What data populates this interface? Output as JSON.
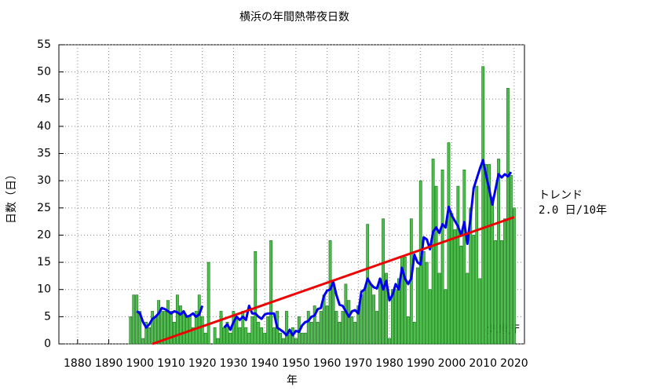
{
  "chart_data": {
    "type": "bar",
    "title": "横浜の年間熱帯夜日数",
    "x_label": "年",
    "y_label": "日数（日）",
    "annotations": [
      "トレンド",
      "2.0 日/10年",
      "気象庁"
    ],
    "xlim": [
      1874,
      2023.3
    ],
    "ylim": [
      0,
      55
    ],
    "xticks": [
      1880,
      1890,
      1900,
      1910,
      1920,
      1930,
      1940,
      1950,
      1960,
      1970,
      1980,
      1990,
      2000,
      2010,
      2020
    ],
    "yticks": [
      0,
      5,
      10,
      15,
      20,
      25,
      30,
      35,
      40,
      45,
      50,
      55
    ],
    "grid": true,
    "series": [
      {
        "type": "bar",
        "color": "#4cbf4c",
        "x": [
          1897,
          1898,
          1899,
          1900,
          1901,
          1902,
          1903,
          1904,
          1905,
          1906,
          1907,
          1908,
          1909,
          1910,
          1911,
          1912,
          1913,
          1914,
          1915,
          1916,
          1917,
          1918,
          1919,
          1920,
          1921,
          1922,
          1923,
          1924,
          1925,
          1926,
          1927,
          1928,
          1929,
          1930,
          1931,
          1932,
          1933,
          1934,
          1935,
          1936,
          1937,
          1938,
          1939,
          1940,
          1941,
          1942,
          1943,
          1944,
          1945,
          1946,
          1947,
          1948,
          1949,
          1950,
          1951,
          1952,
          1953,
          1954,
          1955,
          1956,
          1957,
          1958,
          1959,
          1960,
          1961,
          1962,
          1963,
          1964,
          1965,
          1966,
          1967,
          1968,
          1969,
          1970,
          1971,
          1972,
          1973,
          1974,
          1975,
          1976,
          1977,
          1978,
          1979,
          1980,
          1981,
          1982,
          1983,
          1984,
          1985,
          1986,
          1987,
          1988,
          1989,
          1990,
          1991,
          1992,
          1993,
          1994,
          1995,
          1996,
          1997,
          1998,
          1999,
          2000,
          2001,
          2002,
          2003,
          2004,
          2005,
          2006,
          2007,
          2008,
          2009,
          2010,
          2011,
          2012,
          2013,
          2014,
          2015,
          2016,
          2017,
          2018,
          2019,
          2020
        ],
        "values": [
          5,
          9,
          9,
          6,
          1,
          4,
          3,
          6,
          5,
          8,
          6,
          6,
          8,
          6,
          4,
          9,
          7,
          6,
          5,
          5,
          3,
          6,
          9,
          5,
          2,
          15,
          0,
          3,
          1,
          6,
          3,
          4,
          2,
          6,
          5,
          3,
          6,
          3,
          2,
          5,
          17,
          4,
          3,
          2,
          5,
          19,
          3,
          6,
          2,
          1,
          6,
          2,
          3,
          1,
          5,
          2,
          2,
          6,
          4,
          7,
          4,
          6,
          9,
          7,
          19,
          11,
          6,
          4,
          6,
          11,
          8,
          5,
          4,
          7,
          9,
          10,
          22,
          11,
          9,
          6,
          12,
          23,
          13,
          1,
          10,
          10,
          12,
          16,
          16,
          5,
          23,
          4,
          14,
          30,
          17,
          15,
          10,
          34,
          29,
          13,
          32,
          10,
          37,
          24,
          21,
          29,
          18,
          32,
          13,
          25,
          20,
          29,
          12,
          51,
          33,
          33,
          27,
          19,
          34,
          19,
          23,
          47,
          31,
          25
        ]
      },
      {
        "type": "line",
        "color": "#0000ee",
        "x": [
          1899,
          1900,
          1901,
          1902,
          1903,
          1904,
          1905,
          1906,
          1907,
          1908,
          1909,
          1910,
          1911,
          1912,
          1913,
          1914,
          1915,
          1916,
          1917,
          1918,
          1919,
          1920,
          1921,
          1922,
          1923,
          1924,
          1925,
          1926,
          1927,
          1928,
          1929,
          1930,
          1931,
          1932,
          1933,
          1934,
          1935,
          1936,
          1937,
          1938,
          1939,
          1940,
          1941,
          1942,
          1943,
          1944,
          1945,
          1946,
          1947,
          1948,
          1949,
          1950,
          1951,
          1952,
          1953,
          1954,
          1955,
          1956,
          1957,
          1958,
          1959,
          1960,
          1961,
          1962,
          1963,
          1964,
          1965,
          1966,
          1967,
          1968,
          1969,
          1970,
          1971,
          1972,
          1973,
          1974,
          1975,
          1976,
          1977,
          1978,
          1979,
          1980,
          1981,
          1982,
          1983,
          1984,
          1985,
          1986,
          1987,
          1988,
          1989,
          1990,
          1991,
          1992,
          1993,
          1994,
          1995,
          1996,
          1997,
          1998,
          1999,
          2000,
          2001,
          2002,
          2003,
          2004,
          2005,
          2006,
          2007,
          2008,
          2009,
          2010,
          2011,
          2012,
          2013,
          2014,
          2015,
          2016,
          2017,
          2018,
          2019
        ],
        "values": [
          6,
          5.6,
          4,
          3,
          3.6,
          4.6,
          5,
          5.6,
          6.6,
          6.4,
          6,
          5.6,
          6,
          5.8,
          5.4,
          6,
          5,
          5.2,
          5.6,
          5,
          5.4,
          7,
          null,
          null,
          null,
          null,
          null,
          null,
          3,
          3.6,
          2.6,
          4,
          5,
          4.4,
          5,
          4.4,
          7,
          5.6,
          5.6,
          5,
          4.6,
          5.4,
          5.6,
          5.6,
          5.6,
          3,
          2.6,
          2.2,
          1.6,
          2.6,
          1.6,
          2.4,
          2.2,
          3.4,
          4,
          4.2,
          5,
          5.2,
          6.4,
          6.6,
          8.8,
          9.8,
          10,
          11.4,
          9,
          7.2,
          7,
          6,
          5,
          6,
          6.2,
          5.6,
          9.6,
          10,
          12,
          11,
          10.4,
          10.2,
          12,
          10,
          11.6,
          8,
          9,
          11,
          10,
          14,
          12,
          11,
          12,
          16.4,
          15,
          14.6,
          19.6,
          19.2,
          17.4,
          20.6,
          21.4,
          20.4,
          22,
          21.4,
          25.2,
          23.6,
          22.6,
          21.6,
          20,
          22.4,
          18.4,
          23.2,
          28.6,
          30.4,
          32.2,
          33.8,
          31,
          28.4,
          25.6,
          28.4,
          31.2,
          30.6,
          31.2,
          30.8,
          31.6
        ]
      },
      {
        "type": "line",
        "color": "#ee0000",
        "x": [
          1904,
          2020
        ],
        "values": [
          0,
          23.3
        ]
      }
    ]
  }
}
